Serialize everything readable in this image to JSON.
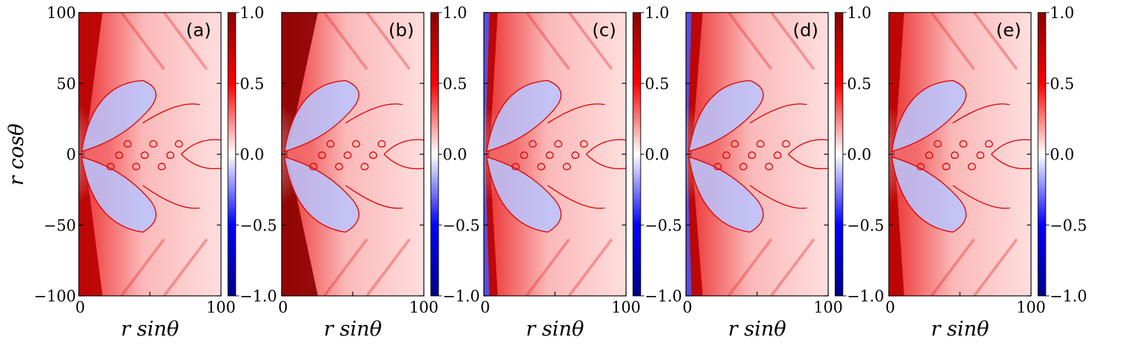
{
  "chart_data": {
    "type": "heatmap",
    "colormap": "bwr",
    "colors": {
      "low": "#00008b",
      "mid": "#ffffff",
      "high": "#8b0000",
      "contour": "#e00000"
    },
    "xlabel": "r sinθ",
    "ylabel": "r cosθ",
    "xlim": [
      0,
      100
    ],
    "ylim": [
      -100,
      100
    ],
    "x_ticks": [
      "0",
      "100"
    ],
    "y_ticks": [
      "100",
      "50",
      "0",
      "−50",
      "−100"
    ],
    "colorbar": {
      "range": [
        -1.0,
        1.0
      ],
      "ticks": [
        "1.0",
        "0.5",
        "0.0",
        "−0.5",
        "−1.0"
      ]
    },
    "contour_level": 0.0,
    "panels": [
      {
        "label": "(a)"
      },
      {
        "label": "(b)"
      },
      {
        "label": "(c)"
      },
      {
        "label": "(d)"
      },
      {
        "label": "(e)"
      }
    ]
  }
}
